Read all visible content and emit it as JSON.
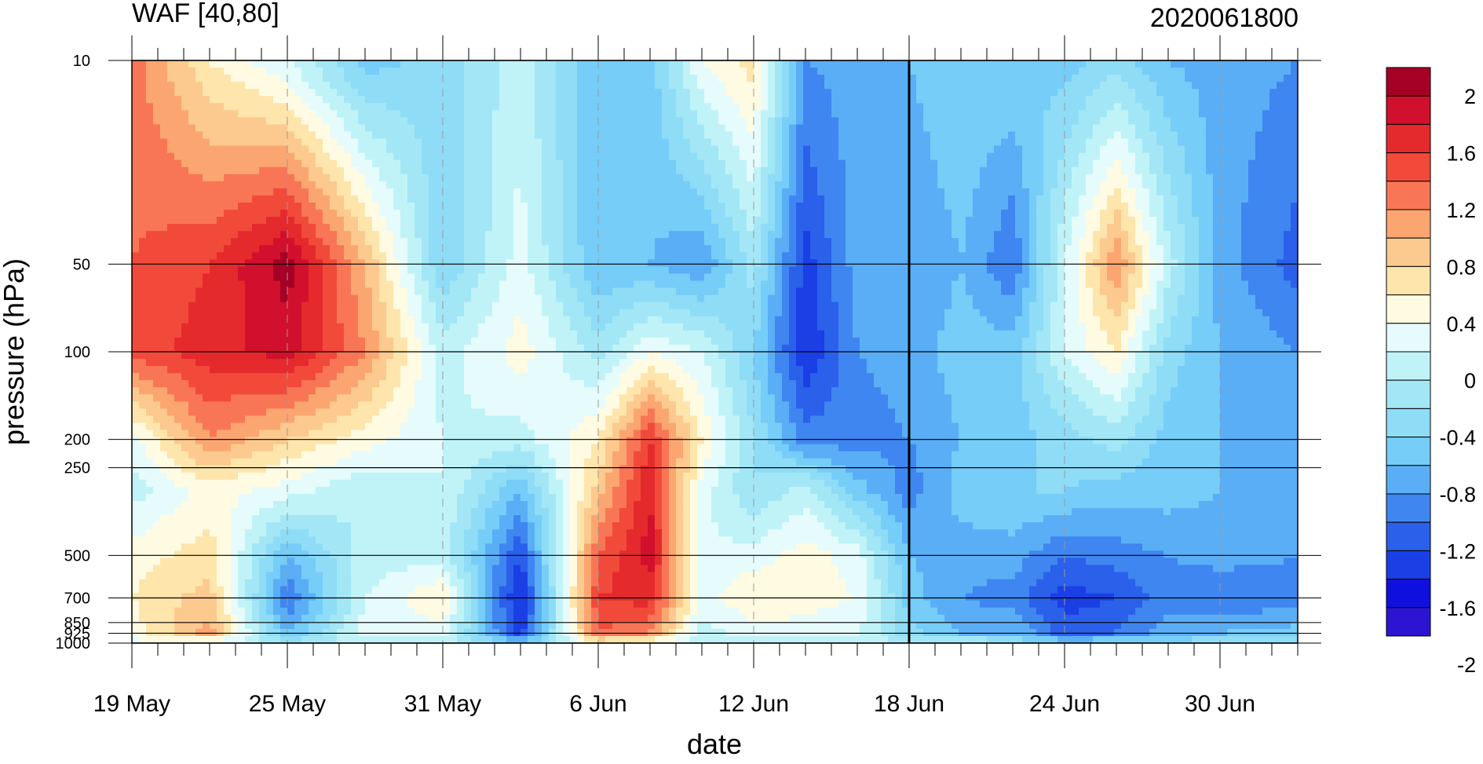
{
  "chart_data": {
    "type": "heatmap",
    "title": "WAF [40,80]",
    "subtitle": "2020061800",
    "xlabel": "date",
    "ylabel": "pressure (hPa)",
    "x_ticks": [
      "19 May",
      "25 May",
      "31 May",
      "6 Jun",
      "12 Jun",
      "18 Jun",
      "24 Jun",
      "30 Jun"
    ],
    "x_range": [
      "19 May",
      "3 Jul"
    ],
    "y_ticks": [
      "10",
      "50",
      "100",
      "200",
      "250",
      "500",
      "700",
      "850",
      "925",
      "1000"
    ],
    "y_scale": "log",
    "y_direction": "decreasing-upward",
    "current_date_marker": "18 Jun",
    "colorbar": {
      "labels": [
        "2",
        "1.6",
        "1.2",
        "0.8",
        "0.4",
        "0",
        "-0.4",
        "-0.8",
        "-1.2",
        "-1.6",
        "-2"
      ],
      "levels": [
        2.2,
        2.0,
        1.8,
        1.6,
        1.4,
        1.2,
        1.0,
        0.8,
        0.6,
        0.4,
        0.2,
        0.0,
        -0.2,
        -0.4,
        -0.6,
        -0.8,
        -1.0,
        -1.2,
        -1.4,
        -1.6,
        -1.8,
        -2.0,
        -2.2
      ],
      "colors": [
        "#a50026",
        "#d0102c",
        "#e52a2d",
        "#f24a3a",
        "#f87656",
        "#fba671",
        "#fcc98e",
        "#fee5ac",
        "#fffbe3",
        "#e6fbfb",
        "#c0f3f8",
        "#a3e7f6",
        "#8fdcf7",
        "#75cdf8",
        "#5aaef6",
        "#3f86f1",
        "#2a60ea",
        "#1a3fe4",
        "#1010de",
        "#2c14d3"
      ]
    },
    "grid": {
      "dates": [
        "19 May",
        "22 May",
        "25 May",
        "28 May",
        "31 May",
        "3 Jun",
        "6 Jun",
        "8 Jun",
        "10 Jun",
        "12 Jun",
        "14 Jun",
        "16 Jun",
        "18 Jun",
        "20 Jun",
        "22 Jun",
        "24 Jun",
        "26 Jun",
        "28 Jun",
        "30 Jun",
        "3 Jul"
      ],
      "pressure_levels": [
        10,
        50,
        100,
        200,
        300,
        500,
        700,
        925,
        1000
      ],
      "values": [
        [
          1.3,
          0.6,
          0.2,
          -0.5,
          -0.3,
          0.1,
          -0.6,
          -0.5,
          0.4,
          0.7,
          -0.8,
          -0.7,
          -0.6,
          -0.4,
          -0.4,
          -0.5,
          -0.3,
          -0.6,
          -0.7,
          -0.8
        ],
        [
          1.4,
          1.6,
          2.1,
          1.0,
          -0.4,
          0.3,
          -0.6,
          -0.6,
          -0.8,
          -0.1,
          -1.3,
          -0.7,
          -0.8,
          -0.6,
          -1.0,
          0.2,
          1.2,
          0.1,
          -0.7,
          -1.1
        ],
        [
          1.5,
          1.7,
          1.9,
          1.2,
          0.1,
          0.5,
          -0.1,
          0.4,
          0.2,
          -0.4,
          -1.4,
          -0.8,
          -0.7,
          -0.5,
          -0.5,
          0.2,
          0.6,
          -0.3,
          -0.6,
          -0.8
        ],
        [
          0.3,
          1.2,
          0.8,
          0.5,
          0.2,
          0.1,
          0.6,
          1.6,
          0.6,
          -0.2,
          -0.9,
          -0.9,
          -0.8,
          -0.6,
          -0.5,
          -0.3,
          -0.1,
          -0.5,
          -0.6,
          -0.7
        ],
        [
          0.1,
          0.5,
          0.3,
          0.0,
          0.2,
          -0.6,
          0.9,
          1.8,
          0.3,
          -0.2,
          0.1,
          -0.5,
          -0.9,
          -0.5,
          -0.4,
          -0.4,
          -0.5,
          -0.5,
          -0.6,
          -0.6
        ],
        [
          0.5,
          0.7,
          -0.6,
          0.1,
          0.1,
          -1.2,
          1.4,
          1.9,
          0.2,
          0.3,
          0.5,
          0.3,
          -0.6,
          -0.7,
          -0.7,
          -1.0,
          -0.9,
          -0.8,
          -0.7,
          -0.8
        ],
        [
          0.6,
          0.9,
          -1.0,
          0.2,
          0.6,
          -1.5,
          1.6,
          1.7,
          0.3,
          0.6,
          0.5,
          0.4,
          -0.5,
          -0.8,
          -0.9,
          -1.3,
          -1.2,
          -0.9,
          -1.0,
          -0.9
        ],
        [
          0.5,
          1.1,
          -0.6,
          0.3,
          0.3,
          -1.3,
          1.4,
          1.2,
          0.1,
          0.3,
          0.3,
          0.2,
          -0.3,
          -0.6,
          -0.6,
          -1.1,
          -1.0,
          -0.7,
          -0.6,
          -0.5
        ],
        [
          0.3,
          0.3,
          -0.1,
          0.1,
          0.1,
          -0.5,
          0.5,
          0.4,
          0.0,
          0.1,
          0.1,
          0.0,
          0.1,
          0.3,
          -0.2,
          -0.4,
          -0.3,
          -0.3,
          -0.2,
          -0.2
        ]
      ]
    }
  }
}
